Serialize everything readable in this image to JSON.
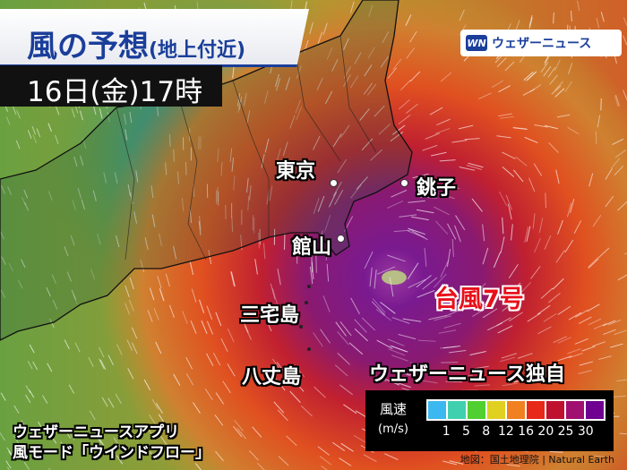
{
  "title": {
    "main": "風の予想",
    "sub": "(地上付近)"
  },
  "datetime": "16日(金)17時",
  "logo": {
    "mark": "WN",
    "text": "ウェザーニュース"
  },
  "places": [
    {
      "name": "東京"
    },
    {
      "name": "銚子"
    },
    {
      "name": "館山"
    },
    {
      "name": "三宅島"
    },
    {
      "name": "八丈島"
    }
  ],
  "typhoon_label": "台風7号",
  "exclusive_label": "ウェザーニュース独自",
  "legend": {
    "label": "風速",
    "unit": "(m/s)",
    "colors": [
      "#3cb8f0",
      "#40d0b0",
      "#50d030",
      "#e0d020",
      "#f08020",
      "#e82818",
      "#c01030",
      "#a01070",
      "#700090"
    ],
    "ticks": [
      "1",
      "5",
      "8",
      "12",
      "16",
      "20",
      "25",
      "30"
    ]
  },
  "app_note": {
    "line1": "ウェザーニュースアプリ",
    "line2": "風モード「ウインドフロー」"
  },
  "credit": "地図：国土地理院 | Natural Earth"
}
